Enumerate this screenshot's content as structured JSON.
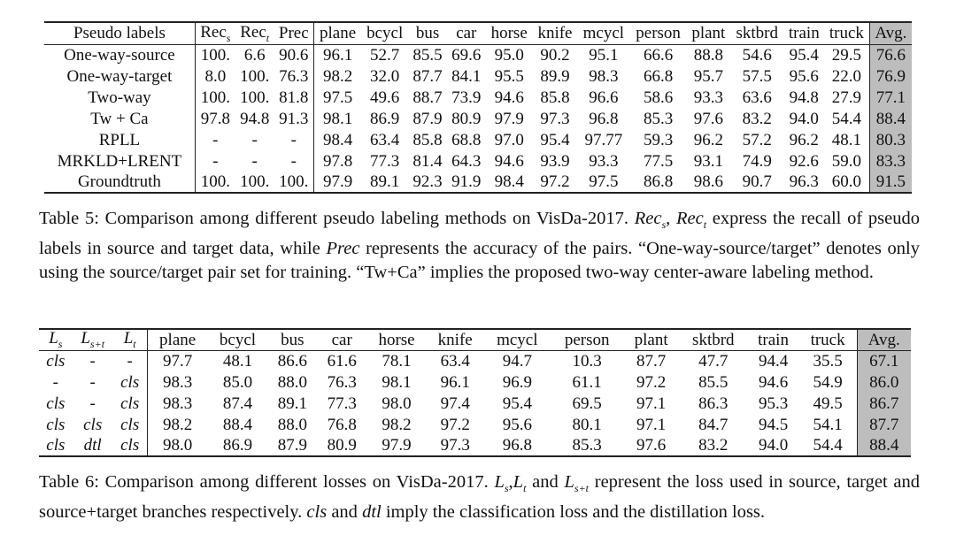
{
  "table5": {
    "headers": [
      "Pseudo labels",
      "Rec",
      "Rec",
      "Prec",
      "plane",
      "bcycl",
      "bus",
      "car",
      "horse",
      "knife",
      "mcycl",
      "person",
      "plant",
      "sktbrd",
      "train",
      "truck",
      "Avg."
    ],
    "header_subs": [
      "",
      "s",
      "t",
      "",
      "",
      "",
      "",
      "",
      "",
      "",
      "",
      "",
      "",
      "",
      "",
      "",
      ""
    ],
    "rows": [
      [
        "One-way-source",
        "100.",
        "6.6",
        "90.6",
        "96.1",
        "52.7",
        "85.5",
        "69.6",
        "95.0",
        "90.2",
        "95.1",
        "66.6",
        "88.8",
        "54.6",
        "95.4",
        "29.5",
        "76.6"
      ],
      [
        "One-way-target",
        "8.0",
        "100.",
        "76.3",
        "98.2",
        "32.0",
        "87.7",
        "84.1",
        "95.5",
        "89.9",
        "98.3",
        "66.8",
        "95.7",
        "57.5",
        "95.6",
        "22.0",
        "76.9"
      ],
      [
        "Two-way",
        "100.",
        "100.",
        "81.8",
        "97.5",
        "49.6",
        "88.7",
        "73.9",
        "94.6",
        "85.8",
        "96.6",
        "58.6",
        "93.3",
        "63.6",
        "94.8",
        "27.9",
        "77.1"
      ],
      [
        "Tw + Ca",
        "97.8",
        "94.8",
        "91.3",
        "98.1",
        "86.9",
        "87.9",
        "80.9",
        "97.9",
        "97.3",
        "96.8",
        "85.3",
        "97.6",
        "83.2",
        "94.0",
        "54.4",
        "88.4"
      ],
      [
        "RPLL",
        "-",
        "-",
        "-",
        "98.4",
        "63.4",
        "85.8",
        "68.8",
        "97.0",
        "95.4",
        "97.77",
        "59.3",
        "96.2",
        "57.2",
        "96.2",
        "48.1",
        "80.3"
      ],
      [
        "MRKLD+LRENT",
        "-",
        "-",
        "-",
        "97.8",
        "77.3",
        "81.4",
        "64.3",
        "94.6",
        "93.9",
        "93.3",
        "77.5",
        "93.1",
        "74.9",
        "92.6",
        "59.0",
        "83.3"
      ],
      [
        "Groundtruth",
        "100.",
        "100.",
        "100.",
        "97.9",
        "89.1",
        "92.3",
        "91.9",
        "98.4",
        "97.2",
        "97.5",
        "86.8",
        "98.6",
        "90.7",
        "96.3",
        "60.0",
        "91.5"
      ]
    ],
    "caption": {
      "p1": "Table 5: Comparison among different pseudo labeling methods on VisDa-2017. ",
      "m1": "Rec",
      "m1_sub": "s",
      "p2": ", ",
      "m2": "Rec",
      "m2_sub": "t",
      "p3": " express the recall of pseudo labels in source and target data, while ",
      "m3": "Prec",
      "p4": " represents the accuracy of the pairs. “One-way-source/target” denotes only using the source/target pair set for training. “Tw+Ca” implies the proposed two-way center-aware labeling method."
    }
  },
  "table6": {
    "headers": [
      "L",
      "L",
      "L",
      "plane",
      "bcycl",
      "bus",
      "car",
      "horse",
      "knife",
      "mcycl",
      "person",
      "plant",
      "sktbrd",
      "train",
      "truck",
      "Avg."
    ],
    "header_subs": [
      "s",
      "s+t",
      "t",
      "",
      "",
      "",
      "",
      "",
      "",
      "",
      "",
      "",
      "",
      "",
      "",
      ""
    ],
    "rows": [
      [
        "cls",
        "-",
        "-",
        "97.7",
        "48.1",
        "86.6",
        "61.6",
        "78.1",
        "63.4",
        "94.7",
        "10.3",
        "87.7",
        "47.7",
        "94.4",
        "35.5",
        "67.1"
      ],
      [
        "-",
        "-",
        "cls",
        "98.3",
        "85.0",
        "88.0",
        "76.3",
        "98.1",
        "96.1",
        "96.9",
        "61.1",
        "97.2",
        "85.5",
        "94.6",
        "54.9",
        "86.0"
      ],
      [
        "cls",
        "-",
        "cls",
        "98.3",
        "87.4",
        "89.1",
        "77.3",
        "98.0",
        "97.4",
        "95.4",
        "69.5",
        "97.1",
        "86.3",
        "95.3",
        "49.5",
        "86.7"
      ],
      [
        "cls",
        "cls",
        "cls",
        "98.2",
        "88.4",
        "88.0",
        "76.8",
        "98.2",
        "97.2",
        "95.6",
        "80.1",
        "97.1",
        "84.7",
        "94.5",
        "54.1",
        "87.7"
      ],
      [
        "cls",
        "dtl",
        "cls",
        "98.0",
        "86.9",
        "87.9",
        "80.9",
        "97.9",
        "97.3",
        "96.8",
        "85.3",
        "97.6",
        "83.2",
        "94.0",
        "54.4",
        "88.4"
      ]
    ],
    "caption": {
      "p1": "Table 6: Comparison among different losses on VisDa-2017. ",
      "m1": "L",
      "m1_sub": "s",
      "p2": ",",
      "m2": "L",
      "m2_sub": "t",
      "p3": " and ",
      "m3": "L",
      "m3_sub": "s+t",
      "p4": " represent the loss used in source, target and source+target branches respectively. ",
      "m4": "cls",
      "p5": " and ",
      "m5": "dtl",
      "p6": " imply the classification loss and the distillation loss."
    }
  },
  "colors": {
    "avg_column_shade": "#bdbdbd",
    "rule": "#222222"
  }
}
